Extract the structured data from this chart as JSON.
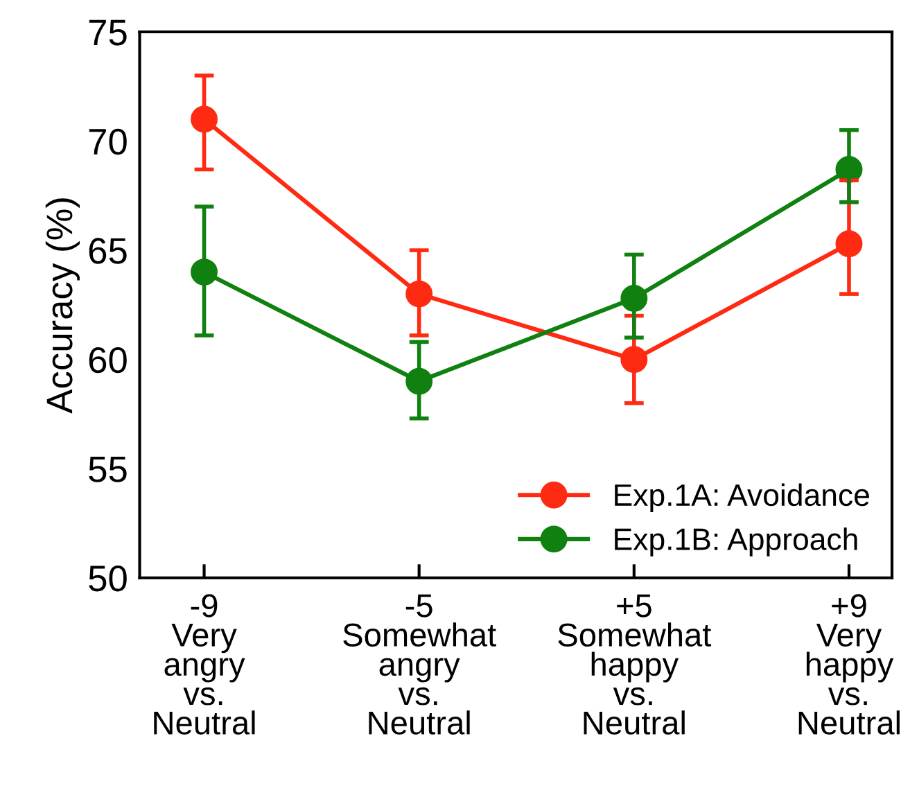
{
  "chart_data": {
    "type": "line",
    "ylabel": "Accuracy (%)",
    "categories": [
      "-9\nVery\nangry\nvs.\nNeutral",
      "-5\nSomewhat\nangry\nvs.\nNeutral",
      "+5\nSomewhat\nhappy\nvs.\nNeutral",
      "+9\nVery\nhappy\nvs.\nNeutral"
    ],
    "series": [
      {
        "name": "Exp.1A: Avoidance",
        "color": "#ff2a12",
        "values": [
          71.0,
          63.0,
          60.0,
          65.3
        ],
        "errors": [
          [
            68.7,
            73.0
          ],
          [
            61.1,
            65.0
          ],
          [
            58.0,
            62.0
          ],
          [
            63.0,
            68.2
          ]
        ]
      },
      {
        "name": "Exp.1B: Approach",
        "color": "#108010",
        "values": [
          64.0,
          59.0,
          62.8,
          68.7
        ],
        "errors": [
          [
            61.1,
            67.0
          ],
          [
            57.3,
            60.8
          ],
          [
            61.0,
            64.8
          ],
          [
            67.2,
            70.5
          ]
        ]
      }
    ],
    "ylim": [
      50,
      75
    ],
    "yticks": [
      50,
      55,
      60,
      65,
      70,
      75
    ],
    "marker": "circle",
    "line_style": "solid",
    "legend": "bottom right",
    "grid": false
  }
}
